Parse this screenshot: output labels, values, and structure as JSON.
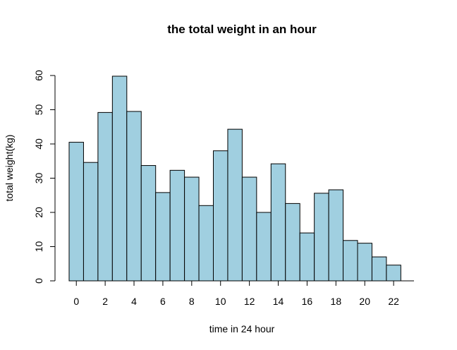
{
  "chart_data": {
    "type": "bar",
    "title": "the total weight in an hour",
    "xlabel": "time in 24 hour",
    "ylabel": "total weight(kg)",
    "categories": [
      0,
      1,
      2,
      3,
      4,
      5,
      6,
      7,
      8,
      9,
      10,
      11,
      12,
      13,
      14,
      15,
      16,
      17,
      18,
      19,
      20,
      21,
      22
    ],
    "values": [
      40.5,
      34.6,
      49.2,
      59.8,
      49.5,
      33.7,
      25.8,
      32.3,
      30.3,
      22.0,
      38.0,
      44.3,
      30.3,
      20.0,
      34.2,
      22.6,
      14.0,
      25.6,
      26.6,
      11.8,
      11.0,
      7.0,
      4.6
    ],
    "xticks": [
      "0",
      "2",
      "4",
      "6",
      "8",
      "10",
      "12",
      "14",
      "16",
      "18",
      "20",
      "22"
    ],
    "yticks": [
      "0",
      "10",
      "20",
      "30",
      "40",
      "50",
      "60"
    ],
    "ylim": [
      0,
      60
    ],
    "bar_color": "#a0cfe0",
    "grid": false
  }
}
